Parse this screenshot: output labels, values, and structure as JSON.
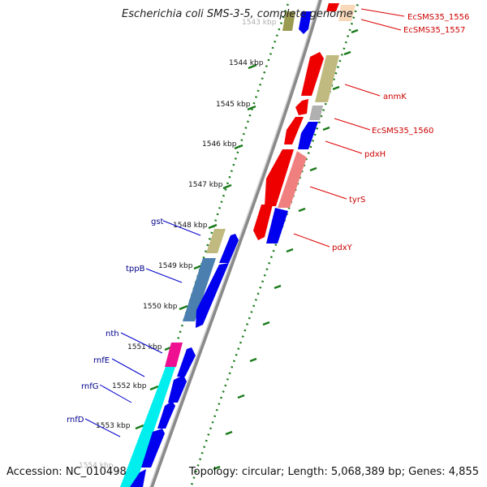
{
  "header": {
    "title": "Escherichia coli SMS-3-5, complete genome"
  },
  "footer": {
    "accession": "Accession: NC_010498",
    "summary": "Topology: circular; Length: 5,068,389 bp; Genes: 4,855"
  },
  "colors": {
    "ruler": "#8a8a8a",
    "ticks": "#1a7a1a",
    "forward_gene": "#0000ee",
    "reverse_gene": "#ee0000",
    "left_label": "#00008b",
    "right_label": "#cc0000",
    "olive": "#c0ba80",
    "steel_blue": "#4a7fb0",
    "cyan": "#00eeee",
    "magenta": "#ee1090",
    "salmon": "#f08080",
    "grey": "#b0b0b0",
    "peach": "#f7d8b8"
  },
  "ruler": {
    "ticks": [
      {
        "label": "1543 kbp"
      },
      {
        "label": "1544 kbp"
      },
      {
        "label": "1545 kbp"
      },
      {
        "label": "1546 kbp"
      },
      {
        "label": "1547 kbp"
      },
      {
        "label": "1548 kbp"
      },
      {
        "label": "1549 kbp"
      },
      {
        "label": "1550 kbp"
      },
      {
        "label": "1551 kbp"
      },
      {
        "label": "1552 kbp"
      },
      {
        "label": "1553 kbp"
      },
      {
        "label": "1554 kbp"
      }
    ]
  },
  "genes_left": [
    {
      "name": "gst"
    },
    {
      "name": "tppB"
    },
    {
      "name": "nth"
    },
    {
      "name": "rnfE"
    },
    {
      "name": "rnfG"
    },
    {
      "name": "rnfD"
    }
  ],
  "genes_right": [
    {
      "name": "EcSMS35_1556"
    },
    {
      "name": "EcSMS35_1557"
    },
    {
      "name": "anmK"
    },
    {
      "name": "EcSMS35_1560"
    },
    {
      "name": "pdxH"
    },
    {
      "name": "tyrS"
    },
    {
      "name": "pdxY"
    }
  ]
}
